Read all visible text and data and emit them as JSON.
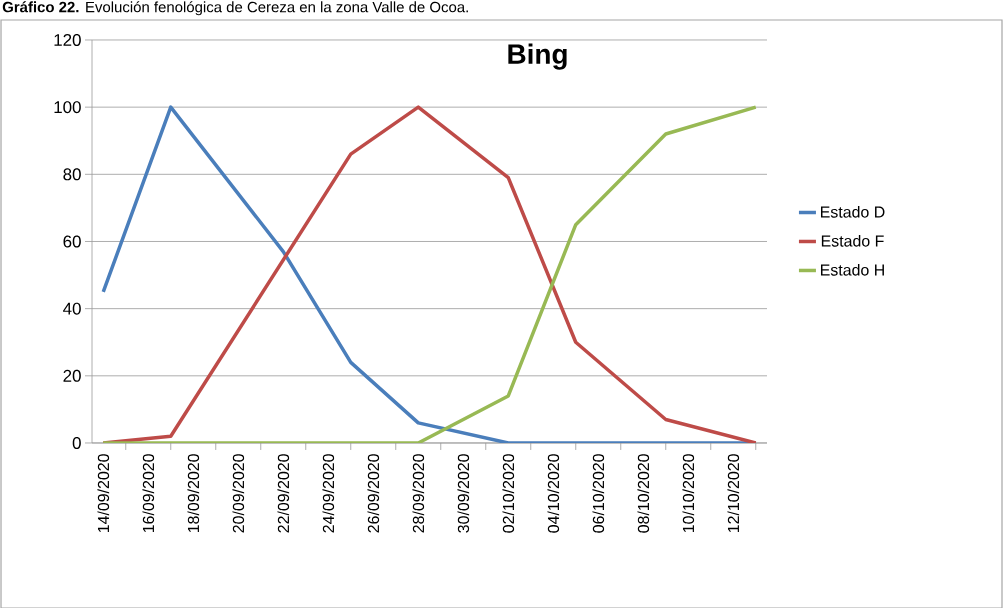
{
  "chart_data": {
    "type": "line",
    "title": "Bing",
    "annotations": [
      "**Gráfico 22.** Evolución fenológica de Cereza en la zona Valle de Ocoa."
    ],
    "xlim": [
      "2020-09-13T12:00",
      "2020-10-13T12:00"
    ],
    "xticks": [
      {
        "value": "2020-09-14",
        "label": "14/09/2020"
      },
      {
        "value": "2020-09-16",
        "label": "16/09/2020"
      },
      {
        "value": "2020-09-18",
        "label": "18/09/2020"
      },
      {
        "value": "2020-09-20",
        "label": "20/09/2020"
      },
      {
        "value": "2020-09-22",
        "label": "22/09/2020"
      },
      {
        "value": "2020-09-24",
        "label": "24/09/2020"
      },
      {
        "value": "2020-09-26",
        "label": "26/09/2020"
      },
      {
        "value": "2020-09-28",
        "label": "28/09/2020"
      },
      {
        "value": "2020-09-30",
        "label": "30/09/2020"
      },
      {
        "value": "2020-10-02",
        "label": "02/10/2020"
      },
      {
        "value": "2020-10-04",
        "label": "04/10/2020"
      },
      {
        "value": "2020-10-06",
        "label": "06/10/2020"
      },
      {
        "value": "2020-10-08",
        "label": "08/10/2020"
      },
      {
        "value": "2020-10-10",
        "label": "10/10/2020"
      },
      {
        "value": "2020-10-12",
        "label": "12/10/2020"
      }
    ],
    "ylim": [
      0,
      120
    ],
    "yticks": [
      0,
      20,
      40,
      60,
      80,
      100,
      120
    ],
    "grid": "y",
    "legend": "right",
    "marker": "none",
    "line_style": "solid",
    "series": [
      {
        "name": "Estado D",
        "color": "#4a7ebb",
        "x": [
          "2020-09-14",
          "2020-09-17",
          "2020-09-22",
          "2020-09-25",
          "2020-09-28",
          "2020-10-02",
          "2020-10-05",
          "2020-10-09",
          "2020-10-13"
        ],
        "values": [
          45,
          100,
          57,
          24,
          6,
          0,
          0,
          0,
          0
        ]
      },
      {
        "name": "Estado F",
        "color": "#be4b48",
        "x": [
          "2020-09-14",
          "2020-09-17",
          "2020-09-25",
          "2020-09-28",
          "2020-10-02",
          "2020-10-05",
          "2020-10-09",
          "2020-10-13"
        ],
        "values": [
          0,
          2,
          86,
          100,
          79,
          30,
          7,
          0
        ]
      },
      {
        "name": "Estado H",
        "color": "#98b954",
        "x": [
          "2020-09-14",
          "2020-09-17",
          "2020-09-25",
          "2020-09-28",
          "2020-10-02",
          "2020-10-05",
          "2020-10-09",
          "2020-10-13"
        ],
        "values": [
          0,
          0,
          0,
          0,
          14,
          65,
          92,
          100
        ]
      }
    ]
  }
}
